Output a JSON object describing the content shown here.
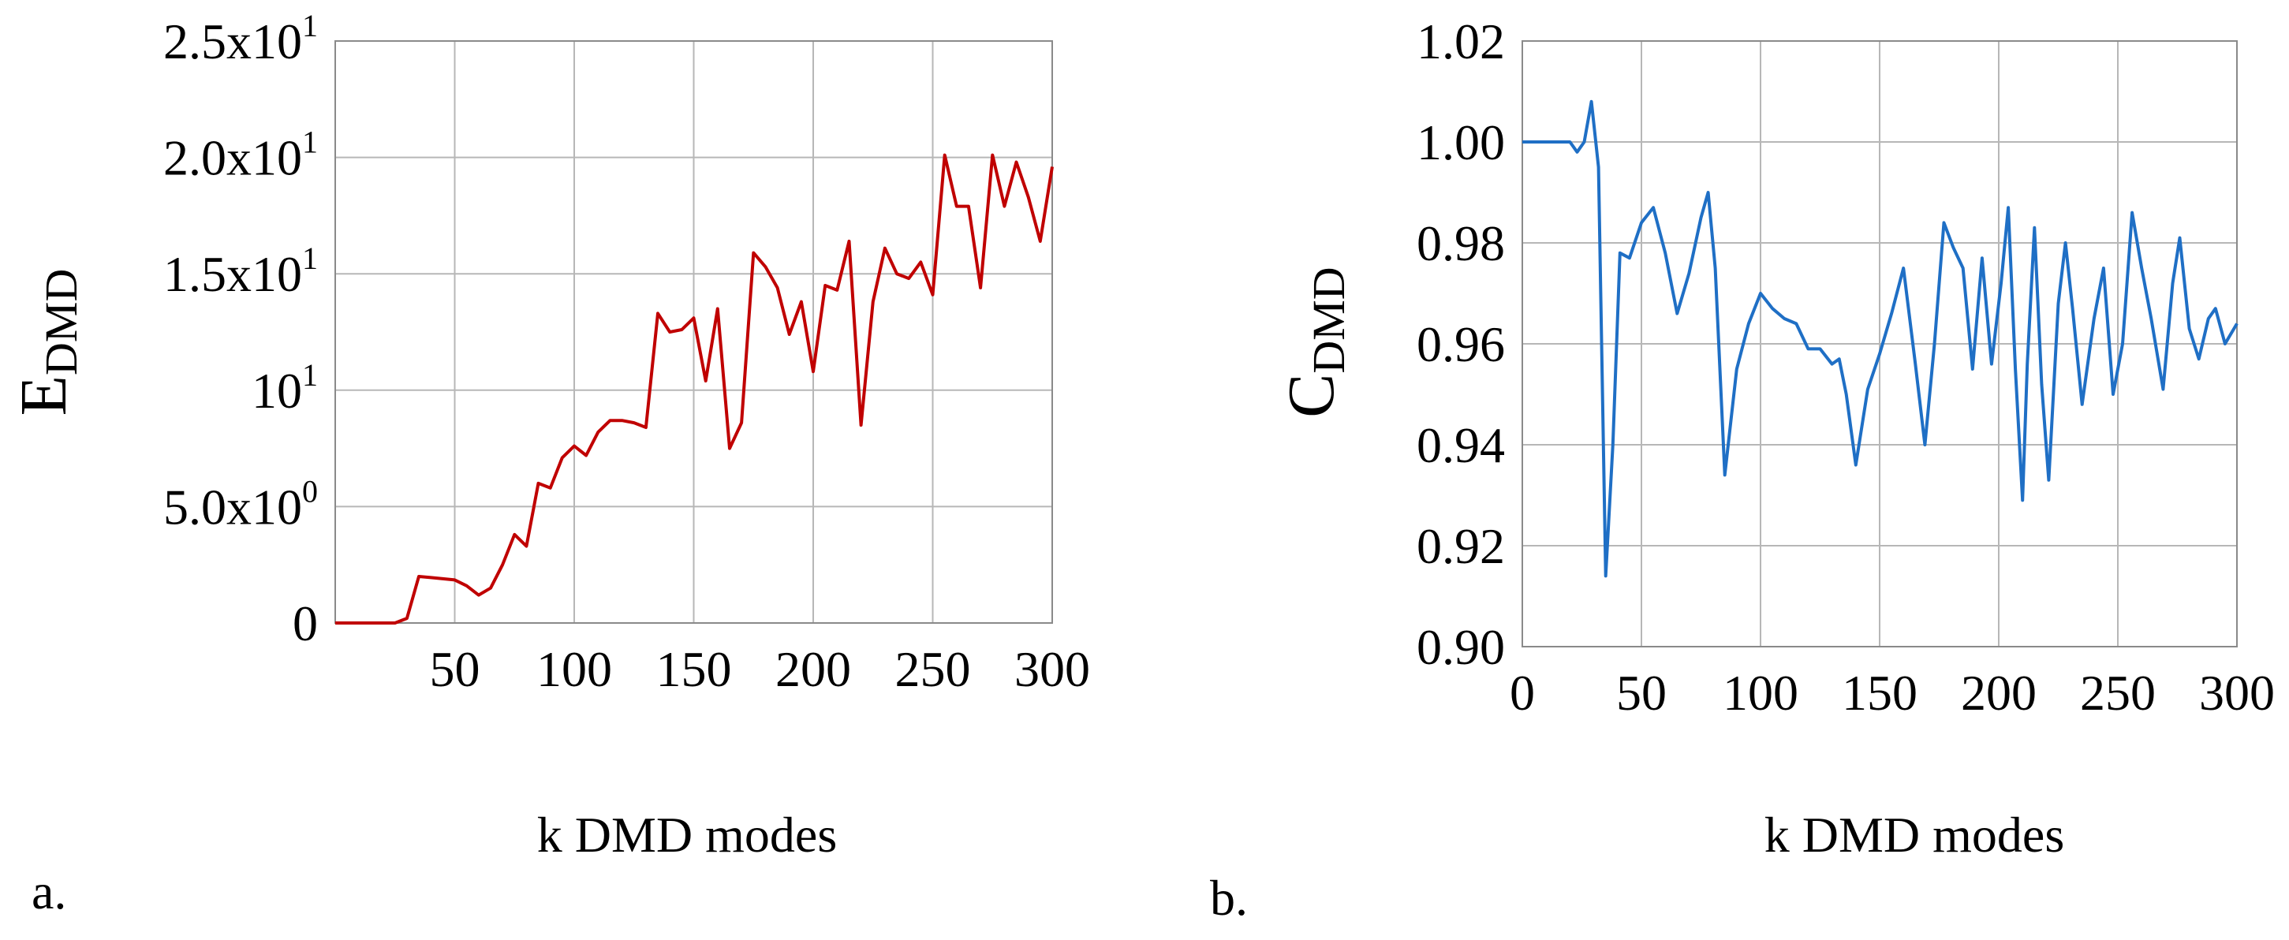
{
  "chart_data": [
    {
      "type": "line",
      "panel_label": "a.",
      "xlabel": "k DMD modes",
      "ylabel": {
        "main": "E",
        "sub": "DMD"
      },
      "xlim": [
        0,
        300
      ],
      "ylim": [
        0,
        25
      ],
      "x_ticks": [
        {
          "value": 50,
          "label": "50"
        },
        {
          "value": 100,
          "label": "100"
        },
        {
          "value": 150,
          "label": "150"
        },
        {
          "value": 200,
          "label": "200"
        },
        {
          "value": 250,
          "label": "250"
        },
        {
          "value": 300,
          "label": "300"
        }
      ],
      "y_ticks": [
        {
          "value": 0,
          "mant": "0",
          "exp": ""
        },
        {
          "value": 5,
          "mant": "5.0x10",
          "exp": "0"
        },
        {
          "value": 10,
          "mant": "10",
          "exp": "1"
        },
        {
          "value": 15,
          "mant": "1.5x10",
          "exp": "1"
        },
        {
          "value": 20,
          "mant": "2.0x10",
          "exp": "1"
        },
        {
          "value": 25,
          "mant": "2.5x10",
          "exp": "1"
        }
      ],
      "grid": true,
      "series": [
        {
          "name": "E_DMD",
          "color": "#c00000",
          "points": [
            [
              0,
              0
            ],
            [
              5,
              0
            ],
            [
              10,
              0
            ],
            [
              15,
              0
            ],
            [
              20,
              0
            ],
            [
              25,
              0
            ],
            [
              30,
              0.2
            ],
            [
              35,
              2.0
            ],
            [
              40,
              1.95
            ],
            [
              45,
              1.9
            ],
            [
              50,
              1.85
            ],
            [
              55,
              1.6
            ],
            [
              60,
              1.2
            ],
            [
              65,
              1.5
            ],
            [
              70,
              2.5
            ],
            [
              75,
              3.8
            ],
            [
              80,
              3.3
            ],
            [
              85,
              6.0
            ],
            [
              90,
              5.8
            ],
            [
              95,
              7.1
            ],
            [
              100,
              7.6
            ],
            [
              105,
              7.2
            ],
            [
              110,
              8.2
            ],
            [
              115,
              8.7
            ],
            [
              120,
              8.7
            ],
            [
              125,
              8.6
            ],
            [
              130,
              8.4
            ],
            [
              135,
              13.3
            ],
            [
              140,
              12.5
            ],
            [
              145,
              12.6
            ],
            [
              150,
              13.1
            ],
            [
              155,
              10.4
            ],
            [
              160,
              13.5
            ],
            [
              165,
              7.5
            ],
            [
              170,
              8.6
            ],
            [
              175,
              15.9
            ],
            [
              180,
              15.3
            ],
            [
              185,
              14.4
            ],
            [
              190,
              12.4
            ],
            [
              195,
              13.8
            ],
            [
              200,
              10.8
            ],
            [
              205,
              14.5
            ],
            [
              210,
              14.3
            ],
            [
              215,
              16.4
            ],
            [
              220,
              8.5
            ],
            [
              225,
              13.8
            ],
            [
              230,
              16.1
            ],
            [
              235,
              15.0
            ],
            [
              240,
              14.8
            ],
            [
              245,
              15.5
            ],
            [
              250,
              14.1
            ],
            [
              255,
              20.1
            ],
            [
              260,
              17.9
            ],
            [
              265,
              17.9
            ],
            [
              270,
              14.4
            ],
            [
              275,
              20.1
            ],
            [
              280,
              17.9
            ],
            [
              285,
              19.8
            ],
            [
              290,
              18.3
            ],
            [
              295,
              16.4
            ],
            [
              300,
              19.6
            ]
          ]
        }
      ]
    },
    {
      "type": "line",
      "panel_label": "b.",
      "xlabel": "k DMD modes",
      "ylabel": {
        "main": "C",
        "sub": "DMD"
      },
      "xlim": [
        0,
        300
      ],
      "ylim": [
        0.9,
        1.02
      ],
      "x_ticks": [
        {
          "value": 0,
          "label": "0"
        },
        {
          "value": 50,
          "label": "50"
        },
        {
          "value": 100,
          "label": "100"
        },
        {
          "value": 150,
          "label": "150"
        },
        {
          "value": 200,
          "label": "200"
        },
        {
          "value": 250,
          "label": "250"
        },
        {
          "value": 300,
          "label": "300"
        }
      ],
      "y_ticks": [
        {
          "value": 0.9,
          "label": "0.90"
        },
        {
          "value": 0.92,
          "label": "0.92"
        },
        {
          "value": 0.94,
          "label": "0.94"
        },
        {
          "value": 0.96,
          "label": "0.96"
        },
        {
          "value": 0.98,
          "label": "0.98"
        },
        {
          "value": 1.0,
          "label": "1.00"
        },
        {
          "value": 1.02,
          "label": "1.02"
        }
      ],
      "grid": true,
      "series": [
        {
          "name": "C_DMD",
          "color": "#1f6fc5",
          "points": [
            [
              0,
              1.0
            ],
            [
              5,
              1.0
            ],
            [
              10,
              1.0
            ],
            [
              15,
              1.0
            ],
            [
              20,
              1.0
            ],
            [
              23,
              0.998
            ],
            [
              26,
              1.0
            ],
            [
              29,
              1.008
            ],
            [
              32,
              0.995
            ],
            [
              35,
              0.914
            ],
            [
              38,
              0.94
            ],
            [
              41,
              0.978
            ],
            [
              45,
              0.977
            ],
            [
              50,
              0.984
            ],
            [
              55,
              0.987
            ],
            [
              60,
              0.978
            ],
            [
              65,
              0.966
            ],
            [
              70,
              0.974
            ],
            [
              75,
              0.985
            ],
            [
              78,
              0.99
            ],
            [
              81,
              0.975
            ],
            [
              85,
              0.934
            ],
            [
              90,
              0.955
            ],
            [
              95,
              0.964
            ],
            [
              100,
              0.97
            ],
            [
              105,
              0.967
            ],
            [
              110,
              0.965
            ],
            [
              115,
              0.964
            ],
            [
              120,
              0.959
            ],
            [
              125,
              0.959
            ],
            [
              130,
              0.956
            ],
            [
              133,
              0.957
            ],
            [
              136,
              0.95
            ],
            [
              140,
              0.936
            ],
            [
              145,
              0.951
            ],
            [
              150,
              0.958
            ],
            [
              155,
              0.966
            ],
            [
              160,
              0.975
            ],
            [
              165,
              0.956
            ],
            [
              169,
              0.94
            ],
            [
              173,
              0.96
            ],
            [
              177,
              0.984
            ],
            [
              181,
              0.979
            ],
            [
              185,
              0.975
            ],
            [
              189,
              0.955
            ],
            [
              193,
              0.977
            ],
            [
              197,
              0.956
            ],
            [
              201,
              0.972
            ],
            [
              204,
              0.987
            ],
            [
              207,
              0.955
            ],
            [
              210,
              0.929
            ],
            [
              212,
              0.956
            ],
            [
              215,
              0.983
            ],
            [
              218,
              0.952
            ],
            [
              221,
              0.933
            ],
            [
              225,
              0.968
            ],
            [
              228,
              0.98
            ],
            [
              231,
              0.967
            ],
            [
              235,
              0.948
            ],
            [
              240,
              0.965
            ],
            [
              244,
              0.975
            ],
            [
              248,
              0.95
            ],
            [
              252,
              0.96
            ],
            [
              256,
              0.986
            ],
            [
              260,
              0.975
            ],
            [
              264,
              0.965
            ],
            [
              269,
              0.951
            ],
            [
              273,
              0.972
            ],
            [
              276,
              0.981
            ],
            [
              280,
              0.963
            ],
            [
              284,
              0.957
            ],
            [
              288,
              0.965
            ],
            [
              291,
              0.967
            ],
            [
              295,
              0.96
            ],
            [
              300,
              0.964
            ]
          ]
        }
      ]
    }
  ]
}
